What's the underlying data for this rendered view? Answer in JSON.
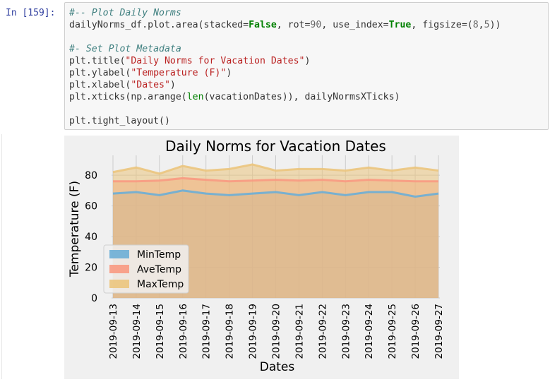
{
  "prompt": "In [159]:",
  "code_lines": [
    [
      {
        "t": "#-- Plot Daily Norms",
        "c": "cm"
      }
    ],
    [
      {
        "t": "dailyNorms_df.plot.area(stacked=",
        "c": ""
      },
      {
        "t": "False",
        "c": "kw"
      },
      {
        "t": ", rot=",
        "c": ""
      },
      {
        "t": "90",
        "c": "nu"
      },
      {
        "t": ", use_index=",
        "c": ""
      },
      {
        "t": "True",
        "c": "kw"
      },
      {
        "t": ", figsize=(",
        "c": ""
      },
      {
        "t": "8",
        "c": "nu"
      },
      {
        "t": ",",
        "c": ""
      },
      {
        "t": "5",
        "c": "nu"
      },
      {
        "t": "))",
        "c": ""
      }
    ],
    [
      {
        "t": "",
        "c": ""
      }
    ],
    [
      {
        "t": "#- Set Plot Metadata",
        "c": "cm"
      }
    ],
    [
      {
        "t": "plt.title(",
        "c": ""
      },
      {
        "t": "\"Daily Norms for Vacation Dates\"",
        "c": "st"
      },
      {
        "t": ")",
        "c": ""
      }
    ],
    [
      {
        "t": "plt.ylabel(",
        "c": ""
      },
      {
        "t": "\"Temperature (F)\"",
        "c": "st"
      },
      {
        "t": ")",
        "c": ""
      }
    ],
    [
      {
        "t": "plt.xlabel(",
        "c": ""
      },
      {
        "t": "\"Dates\"",
        "c": "st"
      },
      {
        "t": ")",
        "c": ""
      }
    ],
    [
      {
        "t": "plt.xticks(np.arange(",
        "c": ""
      },
      {
        "t": "len",
        "c": "bi"
      },
      {
        "t": "(vacationDates)), dailyNormsXTicks)",
        "c": ""
      }
    ],
    [
      {
        "t": "",
        "c": ""
      }
    ],
    [
      {
        "t": "plt.tight_layout()",
        "c": ""
      }
    ]
  ],
  "chart_data": {
    "type": "area",
    "title": "Daily Norms for Vacation Dates",
    "xlabel": "Dates",
    "ylabel": "Temperature (F)",
    "categories": [
      "2019-09-13",
      "2019-09-14",
      "2019-09-15",
      "2019-09-16",
      "2019-09-17",
      "2019-09-18",
      "2019-09-19",
      "2019-09-20",
      "2019-09-21",
      "2019-09-22",
      "2019-09-23",
      "2019-09-24",
      "2019-09-25",
      "2019-09-26",
      "2019-09-27"
    ],
    "series": [
      {
        "name": "MinTemp",
        "color": "#6baed6",
        "values": [
          68,
          69,
          67,
          70,
          68,
          67,
          68,
          69,
          67,
          69,
          67,
          69,
          69,
          66,
          68
        ]
      },
      {
        "name": "AveTemp",
        "color": "#f89a82",
        "values": [
          76,
          76,
          76.5,
          78,
          77,
          76,
          76.5,
          77,
          76.5,
          77,
          76,
          77,
          76.5,
          76,
          76
        ]
      },
      {
        "name": "MaxTemp",
        "color": "#ebc57e",
        "values": [
          82,
          85,
          81,
          86,
          83,
          84,
          87,
          83,
          84,
          84,
          83,
          85,
          83,
          85,
          83
        ]
      }
    ],
    "ylim": [
      0,
      92
    ],
    "yticks": [
      0,
      20,
      40,
      60,
      80
    ],
    "grid": true,
    "legend_position": "lower-left"
  }
}
